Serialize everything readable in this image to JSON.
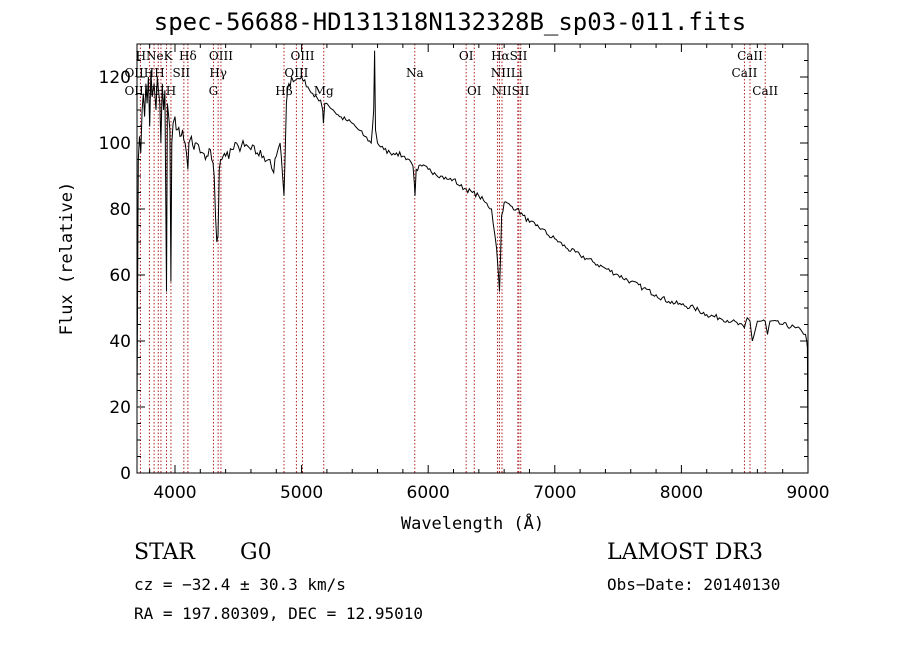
{
  "chart_data": {
    "type": "line",
    "title": "spec-56688-HD131318N132328B_sp03-011.fits",
    "xlabel": "Wavelength (Å)",
    "ylabel": "Flux (relative)",
    "xlim": [
      3700,
      9000
    ],
    "ylim": [
      0,
      130
    ],
    "xticks": [
      4000,
      5000,
      6000,
      7000,
      8000,
      9000
    ],
    "yticks": [
      0,
      20,
      40,
      60,
      80,
      100,
      120
    ],
    "series": [
      {
        "name": "flux",
        "x": [
          3700,
          3710,
          3720,
          3730,
          3740,
          3750,
          3760,
          3770,
          3780,
          3790,
          3800,
          3810,
          3820,
          3835,
          3850,
          3860,
          3870,
          3880,
          3889,
          3900,
          3910,
          3920,
          3933,
          3940,
          3950,
          3960,
          3968,
          3975,
          3985,
          4000,
          4020,
          4040,
          4060,
          4080,
          4102,
          4110,
          4130,
          4150,
          4170,
          4200,
          4220,
          4240,
          4260,
          4280,
          4300,
          4310,
          4320,
          4330,
          4340,
          4345,
          4350,
          4360,
          4380,
          4400,
          4450,
          4500,
          4550,
          4600,
          4650,
          4700,
          4750,
          4780,
          4800,
          4830,
          4850,
          4861,
          4870,
          4880,
          4900,
          4920,
          4950,
          5000,
          5050,
          5100,
          5150,
          5167,
          5172,
          5183,
          5200,
          5250,
          5300,
          5350,
          5400,
          5450,
          5500,
          5550,
          5570,
          5577,
          5584,
          5600,
          5650,
          5700,
          5750,
          5800,
          5850,
          5880,
          5890,
          5896,
          5905,
          5950,
          6000,
          6050,
          6100,
          6150,
          6200,
          6250,
          6300,
          6350,
          6400,
          6450,
          6500,
          6540,
          6555,
          6563,
          6572,
          6580,
          6600,
          6650,
          6700,
          6750,
          6800,
          6850,
          6900,
          6950,
          7000,
          7100,
          7200,
          7300,
          7400,
          7500,
          7600,
          7700,
          7800,
          7900,
          8000,
          8100,
          8200,
          8300,
          8400,
          8498,
          8520,
          8542,
          8560,
          8600,
          8662,
          8680,
          8700,
          8800,
          8900,
          8950,
          8980,
          8990,
          8995,
          9000
        ],
        "values": [
          20,
          95,
          102,
          97,
          110,
          115,
          108,
          118,
          112,
          120,
          105,
          122,
          114,
          118,
          110,
          120,
          116,
          112,
          100,
          118,
          110,
          116,
          55,
          112,
          108,
          104,
          58,
          100,
          106,
          108,
          104,
          102,
          104,
          100,
          92,
          100,
          102,
          98,
          100,
          97,
          97,
          95,
          96,
          98,
          94,
          90,
          78,
          70,
          72,
          82,
          92,
          95,
          96,
          96,
          98,
          99,
          99,
          98,
          97,
          96,
          95,
          91,
          96,
          100,
          90,
          84,
          96,
          112,
          118,
          120,
          119,
          120,
          117,
          114,
          113,
          110,
          106,
          112,
          112,
          110,
          108,
          107,
          106,
          104,
          102,
          100,
          110,
          128,
          104,
          100,
          98,
          97,
          97,
          96,
          95,
          93,
          88,
          84,
          92,
          93,
          92,
          91,
          90,
          89,
          89,
          87,
          86,
          85,
          84,
          82,
          80,
          68,
          60,
          55,
          66,
          78,
          82,
          81,
          80,
          78,
          76,
          75,
          74,
          72,
          71,
          68,
          66,
          64,
          62,
          60,
          58,
          56,
          54,
          52,
          51,
          50,
          48,
          47,
          46,
          44,
          47,
          46,
          40,
          46,
          46,
          42,
          46,
          45,
          44,
          43,
          42,
          40,
          38,
          0
        ]
      }
    ],
    "lines": [
      {
        "x": 3727,
        "labels": [
          "OII"
        ]
      },
      {
        "x": 3798,
        "labels": [
          "H"
        ]
      },
      {
        "x": 3835,
        "labels": [
          "H"
        ]
      },
      {
        "x": 3868,
        "labels": [
          "Ne"
        ]
      },
      {
        "x": 3889,
        "labels": [
          "H"
        ]
      },
      {
        "x": 3933,
        "labels": [
          "K"
        ]
      },
      {
        "x": 3968,
        "labels": [
          "H"
        ]
      },
      {
        "x": 4070,
        "labels": [
          "SII"
        ]
      },
      {
        "x": 4102,
        "labels": [
          "Hδ"
        ]
      },
      {
        "x": 4304,
        "labels": [
          "G"
        ]
      },
      {
        "x": 4341,
        "labels": [
          "Hγ"
        ]
      },
      {
        "x": 4363,
        "labels": [
          "OIII"
        ]
      },
      {
        "x": 4861,
        "labels": [
          "Hβ"
        ]
      },
      {
        "x": 4959,
        "labels": [
          "OIII"
        ]
      },
      {
        "x": 5007,
        "labels": [
          "OIII"
        ]
      },
      {
        "x": 5175,
        "labels": [
          "Mg"
        ]
      },
      {
        "x": 5894,
        "labels": [
          "Na"
        ]
      },
      {
        "x": 6300,
        "labels": [
          "OI"
        ]
      },
      {
        "x": 6364,
        "labels": [
          "OI"
        ]
      },
      {
        "x": 6548,
        "labels": [
          "NII"
        ]
      },
      {
        "x": 6563,
        "labels": [
          "Hα"
        ]
      },
      {
        "x": 6583,
        "labels": [
          "NII"
        ]
      },
      {
        "x": 6708,
        "labels": [
          "Li"
        ]
      },
      {
        "x": 6716,
        "labels": [
          "SII"
        ]
      },
      {
        "x": 6731,
        "labels": [
          "SII"
        ]
      },
      {
        "x": 8498,
        "labels": [
          "CaII"
        ]
      },
      {
        "x": 8542,
        "labels": [
          "CaII"
        ]
      },
      {
        "x": 8662,
        "labels": [
          "CaII"
        ]
      }
    ],
    "line_color": "#000000",
    "marker_line_color": "#b22222",
    "annotations": [
      {
        "text": "HNeK",
        "x": 3835,
        "row": 0
      },
      {
        "text": "Hδ",
        "x": 4102,
        "row": 0
      },
      {
        "text": "OIII",
        "x": 4363,
        "row": 0
      },
      {
        "text": "OIII",
        "x": 5007,
        "row": 0
      },
      {
        "text": "OI",
        "x": 6300,
        "row": 0
      },
      {
        "text": "HαSII",
        "x": 6640,
        "row": 0
      },
      {
        "text": "CaII",
        "x": 8542,
        "row": 0
      },
      {
        "text": "OIIHH",
        "x": 3760,
        "row": 1
      },
      {
        "text": "SII",
        "x": 4050,
        "row": 1
      },
      {
        "text": "Hγ",
        "x": 4341,
        "row": 1
      },
      {
        "text": "OIII",
        "x": 4959,
        "row": 1
      },
      {
        "text": "Na",
        "x": 5894,
        "row": 1
      },
      {
        "text": "NIILi",
        "x": 6620,
        "row": 1
      },
      {
        "text": "CaII",
        "x": 8498,
        "row": 1
      },
      {
        "text": "OIIHH",
        "x": 3760,
        "row": 2
      },
      {
        "text": "H",
        "x": 3968,
        "row": 2
      },
      {
        "text": "G",
        "x": 4304,
        "row": 2
      },
      {
        "text": "Hβ",
        "x": 4861,
        "row": 2
      },
      {
        "text": "Mg",
        "x": 5175,
        "row": 2
      },
      {
        "text": "OI",
        "x": 6364,
        "row": 2
      },
      {
        "text": "NIISII",
        "x": 6650,
        "row": 2
      },
      {
        "text": "CaII",
        "x": 8662,
        "row": 2
      }
    ]
  },
  "info": {
    "object_class": "STAR",
    "subclass": "G0",
    "survey": "LAMOST DR3",
    "redshift": "cz = −32.4 ± 30.3 km/s",
    "obs_date": "Obs−Date: 20140130",
    "coords": "RA = 197.80309, DEC =  12.95010"
  }
}
